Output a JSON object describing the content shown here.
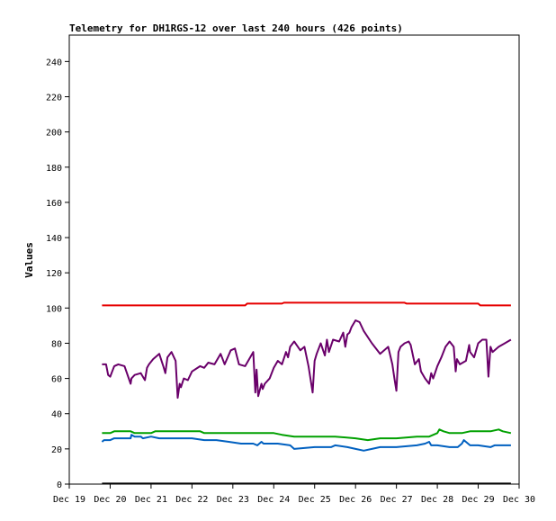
{
  "chart_data": {
    "type": "line",
    "title": "Telemetry for DH1RGS-12 over last 240 hours (426 points)",
    "ylabel": "Values",
    "xlabel": "",
    "xlim": [
      0,
      11
    ],
    "ylim": [
      0,
      255
    ],
    "x_ticks": [
      {
        "x": 0,
        "label": "Dec 19"
      },
      {
        "x": 1,
        "label": "Dec 20"
      },
      {
        "x": 2,
        "label": "Dec 21"
      },
      {
        "x": 3,
        "label": "Dec 22"
      },
      {
        "x": 4,
        "label": "Dec 23"
      },
      {
        "x": 5,
        "label": "Dec 24"
      },
      {
        "x": 6,
        "label": "Dec 25"
      },
      {
        "x": 7,
        "label": "Dec 26"
      },
      {
        "x": 8,
        "label": "Dec 27"
      },
      {
        "x": 9,
        "label": "Dec 28"
      },
      {
        "x": 10,
        "label": "Dec 29"
      },
      {
        "x": 11,
        "label": "Dec 30"
      }
    ],
    "y_ticks": [
      0,
      20,
      40,
      60,
      80,
      100,
      120,
      140,
      160,
      180,
      200,
      220,
      240
    ],
    "grid": false,
    "legend": "none",
    "series": [
      {
        "color": "#e60000",
        "x": [
          0.8,
          4.3,
          4.35,
          5.2,
          5.25,
          8.2,
          8.25,
          10.0,
          10.05,
          10.8
        ],
        "y": [
          101.5,
          101.5,
          102.5,
          102.5,
          103,
          103,
          102.5,
          102.5,
          101.5,
          101.5
        ]
      },
      {
        "color": "#6a006a",
        "x": [
          0.8,
          0.9,
          0.95,
          1.0,
          1.05,
          1.1,
          1.2,
          1.35,
          1.5,
          1.52,
          1.6,
          1.75,
          1.85,
          1.9,
          1.95,
          2.05,
          2.2,
          2.3,
          2.35,
          2.4,
          2.5,
          2.6,
          2.65,
          2.7,
          2.73,
          2.8,
          2.9,
          3.0,
          3.2,
          3.3,
          3.4,
          3.55,
          3.7,
          3.8,
          3.95,
          4.05,
          4.15,
          4.3,
          4.5,
          4.55,
          4.58,
          4.62,
          4.7,
          4.73,
          4.78,
          4.9,
          5.0,
          5.1,
          5.2,
          5.3,
          5.35,
          5.4,
          5.5,
          5.65,
          5.75,
          5.85,
          5.95,
          6.0,
          6.05,
          6.15,
          6.25,
          6.3,
          6.35,
          6.45,
          6.6,
          6.7,
          6.75,
          6.8,
          6.85,
          6.9,
          7.0,
          7.1,
          7.2,
          7.4,
          7.6,
          7.8,
          7.9,
          7.95,
          8.0,
          8.05,
          8.1,
          8.2,
          8.3,
          8.35,
          8.45,
          8.55,
          8.6,
          8.7,
          8.8,
          8.85,
          8.9,
          9.0,
          9.1,
          9.2,
          9.3,
          9.4,
          9.45,
          9.48,
          9.55,
          9.7,
          9.78,
          9.8,
          9.9,
          10.0,
          10.1,
          10.2,
          10.25,
          10.3,
          10.35,
          10.5,
          10.65,
          10.8
        ],
        "y": [
          68,
          68,
          62,
          61,
          64,
          67,
          68,
          67,
          57,
          60,
          62,
          63,
          59,
          66,
          68,
          71,
          74,
          67,
          63,
          72,
          75,
          70,
          49,
          57,
          55,
          60,
          59,
          64,
          67,
          66,
          69,
          68,
          74,
          68,
          76,
          77,
          68,
          67,
          75,
          52,
          65,
          50,
          57,
          54,
          57,
          60,
          66,
          70,
          68,
          75,
          72,
          78,
          81,
          76,
          78,
          67,
          52,
          70,
          74,
          80,
          73,
          82,
          75,
          82,
          81,
          86,
          78,
          85,
          86,
          89,
          93,
          92,
          87,
          80,
          74,
          78,
          68,
          60,
          53,
          75,
          78,
          80,
          81,
          79,
          68,
          71,
          64,
          60,
          57,
          63,
          60,
          67,
          72,
          78,
          81,
          78,
          64,
          71,
          68,
          70,
          79,
          75,
          72,
          80,
          82,
          82,
          61,
          78,
          75,
          78,
          80,
          82
        ]
      },
      {
        "color": "#00a000",
        "x": [
          0.8,
          1.0,
          1.1,
          1.5,
          1.6,
          2.0,
          2.1,
          3.2,
          3.3,
          5.0,
          5.2,
          5.5,
          6.0,
          6.5,
          7.0,
          7.3,
          7.6,
          8.0,
          8.5,
          8.8,
          9.0,
          9.05,
          9.15,
          9.3,
          9.6,
          9.8,
          10.0,
          10.3,
          10.5,
          10.6,
          10.8
        ],
        "y": [
          29,
          29,
          30,
          30,
          29,
          29,
          30,
          30,
          29,
          29,
          28,
          27,
          27,
          27,
          26,
          25,
          26,
          26,
          27,
          27,
          29,
          31,
          30,
          29,
          29,
          30,
          30,
          30,
          31,
          30,
          29
        ]
      },
      {
        "color": "#0060c0",
        "x": [
          0.8,
          0.85,
          1.0,
          1.1,
          1.5,
          1.52,
          1.6,
          1.75,
          1.8,
          2.0,
          2.2,
          2.5,
          3.0,
          3.3,
          3.6,
          3.9,
          4.2,
          4.5,
          4.6,
          4.7,
          4.75,
          4.9,
          5.1,
          5.4,
          5.5,
          6.0,
          6.4,
          6.5,
          6.8,
          7.0,
          7.2,
          7.4,
          7.6,
          8.0,
          8.5,
          8.7,
          8.8,
          8.85,
          9.0,
          9.3,
          9.5,
          9.6,
          9.65,
          9.8,
          10.0,
          10.3,
          10.4,
          10.5,
          10.8
        ],
        "y": [
          24,
          25,
          25,
          26,
          26,
          28,
          27,
          27,
          26,
          27,
          26,
          26,
          26,
          25,
          25,
          24,
          23,
          23,
          22,
          24,
          23,
          23,
          23,
          22,
          20,
          21,
          21,
          22,
          21,
          20,
          19,
          20,
          21,
          21,
          22,
          23,
          24,
          22,
          22,
          21,
          21,
          23,
          25,
          22,
          22,
          21,
          22,
          22,
          22
        ]
      },
      {
        "color": "#000000",
        "x": [
          0.8,
          10.8
        ],
        "y": [
          0.3,
          0.3
        ]
      }
    ]
  }
}
